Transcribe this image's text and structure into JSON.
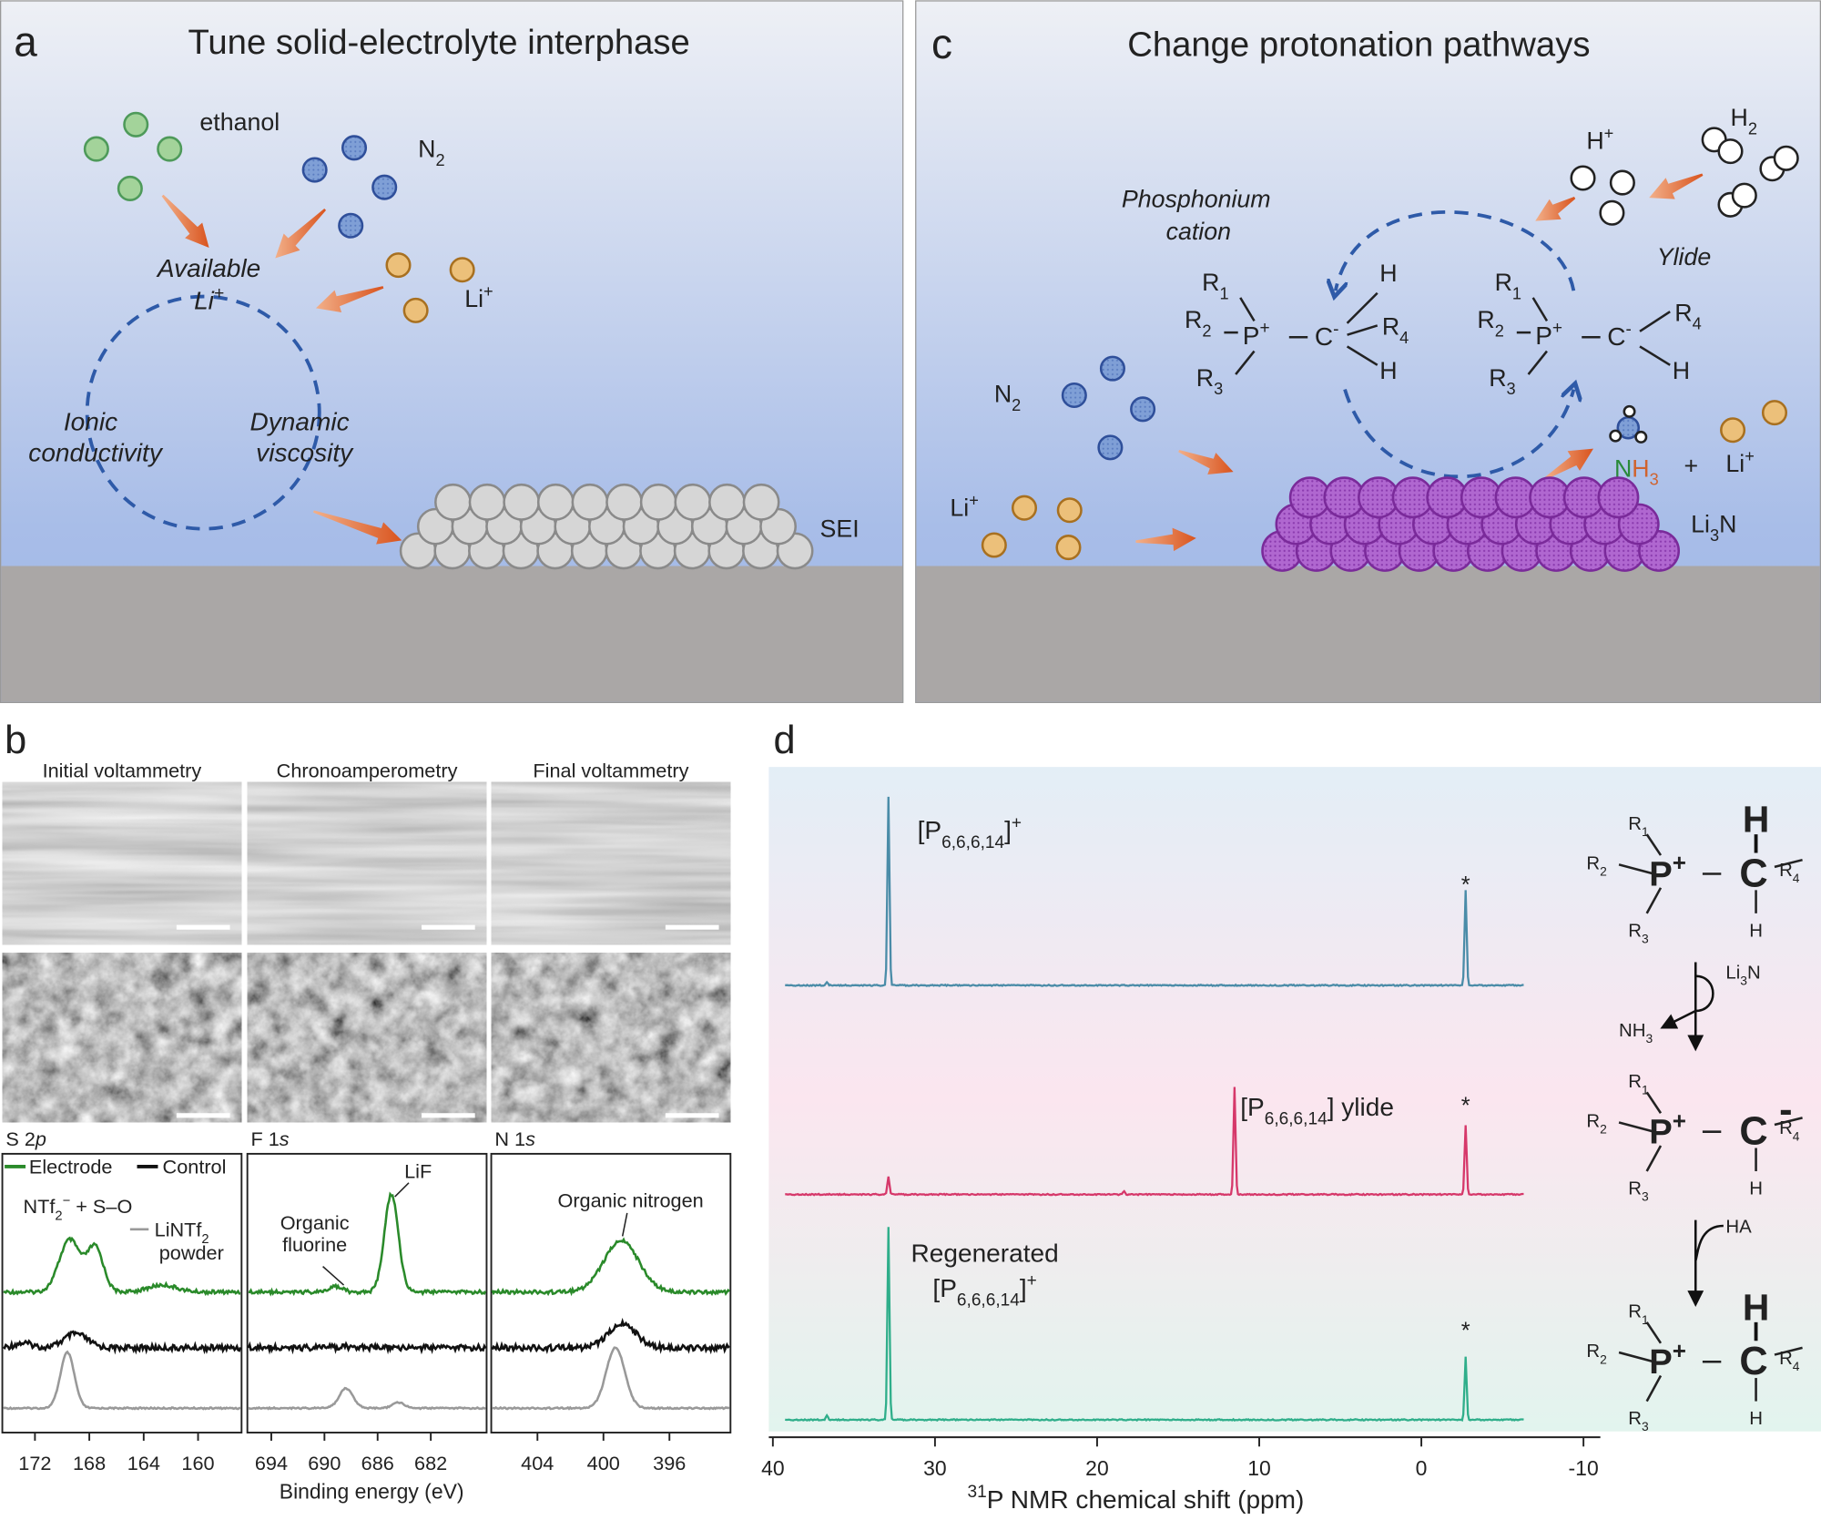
{
  "panel_a": {
    "label": "a",
    "title": "Tune solid-electrolyte interphase",
    "ethanol": "ethanol",
    "n2": [
      "N",
      "2"
    ],
    "li": [
      "Li",
      "+"
    ],
    "available": [
      "Available",
      "Li",
      "+"
    ],
    "ionic": [
      "Ionic",
      "conductivity"
    ],
    "dynamic": [
      "Dynamic",
      "viscosity"
    ],
    "sei": "SEI"
  },
  "panel_c": {
    "label": "c",
    "title": "Change protonation pathways",
    "phosphonium": [
      "Phosphonium",
      "cation"
    ],
    "ylide": "Ylide",
    "h_plus": [
      "H",
      "+"
    ],
    "h2": [
      "H",
      "2"
    ],
    "n2": [
      "N",
      "2"
    ],
    "li": [
      "Li",
      "+"
    ],
    "r": [
      "R",
      "1",
      "2",
      "3",
      "4"
    ],
    "p": [
      "P",
      "+"
    ],
    "c": [
      "C",
      "-"
    ],
    "h": "H",
    "nh3": [
      "N",
      "H",
      "3"
    ],
    "plus": "+",
    "li_product": [
      "Li",
      "+"
    ],
    "li3n": [
      "Li",
      "3",
      "N"
    ]
  },
  "panel_b": {
    "label": "b",
    "columns": [
      "Initial voltammetry",
      "Chronoamperometry",
      "Final voltammetry"
    ],
    "xps": [
      {
        "title": [
          "S 2",
          "p"
        ],
        "xlim": [
          174.4,
          156.8
        ],
        "xticks": [
          172,
          168,
          164,
          160
        ]
      },
      {
        "title": [
          "F 1",
          "s"
        ],
        "xlim": [
          695.8,
          677.8
        ],
        "xticks": [
          694,
          690,
          686,
          682
        ]
      },
      {
        "title": [
          "N 1",
          "s"
        ],
        "xlim": [
          406.8,
          392.3
        ],
        "xticks": [
          404,
          400,
          396
        ]
      }
    ],
    "legend": [
      "Electrode",
      "Control"
    ],
    "ntf": [
      "NTf",
      "2",
      "−",
      " + S–O"
    ],
    "lintf": [
      "LiNTf",
      "2",
      "powder"
    ],
    "organic_fluorine": [
      "Organic",
      "fluorine"
    ],
    "lif": "LiF",
    "organic_nitrogen": "Organic nitrogen",
    "xlabel": "Binding energy (eV)"
  },
  "panel_d": {
    "label": "d",
    "xlim": [
      40.25,
      -11.04
    ],
    "xticks": [
      40,
      30,
      20,
      10,
      0,
      -10
    ],
    "xlabel": [
      "31",
      "P NMR chemical shift (ppm)"
    ],
    "cation": [
      "[P",
      "6,6,6,14",
      "]",
      "+"
    ],
    "ylide": [
      "[P",
      "6,6,6,14",
      "] ylide"
    ],
    "regenerated": [
      "Regenerated",
      "[P",
      "6,6,6,14",
      "]",
      "+"
    ],
    "star": "*",
    "scheme": {
      "r": [
        "R",
        "1",
        "2",
        "3",
        "4"
      ],
      "p": [
        "P",
        "+"
      ],
      "c": "C",
      "minus": "-",
      "h": "H",
      "li3n": [
        "Li",
        "3",
        "N"
      ],
      "nh3": [
        "NH",
        "3"
      ],
      "ha": "HA"
    }
  }
}
